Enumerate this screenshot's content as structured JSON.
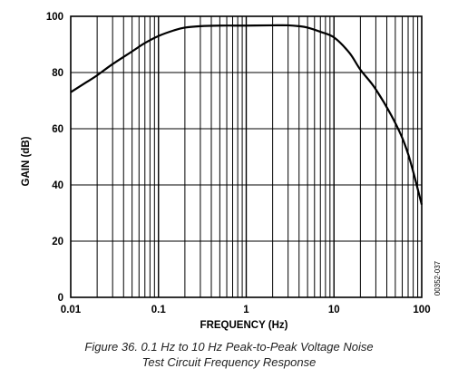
{
  "chart_data": {
    "type": "line",
    "xscale": "log",
    "xlim": [
      0.01,
      100
    ],
    "ylim": [
      0,
      100
    ],
    "xlabel": "FREQUENCY (Hz)",
    "ylabel": "GAIN (dB)",
    "x_ticks": [
      0.01,
      0.1,
      1,
      10,
      100
    ],
    "x_tick_labels": [
      "0.01",
      "0.1",
      "1",
      "10",
      "100"
    ],
    "y_ticks": [
      0,
      20,
      40,
      60,
      80,
      100
    ],
    "y_tick_labels": [
      "0",
      "20",
      "40",
      "60",
      "80",
      "100"
    ],
    "grid": true,
    "series": [
      {
        "x": [
          0.01,
          0.015,
          0.02,
          0.03,
          0.05,
          0.07,
          0.1,
          0.15,
          0.2,
          0.3,
          0.5,
          1,
          2,
          3,
          4,
          5,
          7,
          10,
          15,
          20,
          30,
          50,
          70,
          100
        ],
        "y": [
          73,
          76.5,
          79,
          83,
          87.5,
          90.5,
          93,
          95,
          96,
          96.5,
          96.7,
          96.7,
          96.8,
          96.8,
          96.5,
          96,
          94.5,
          92.5,
          87,
          81,
          74,
          62,
          51,
          33
        ],
        "color": "#000000"
      }
    ],
    "side_label": "00352-037"
  },
  "caption": {
    "line1": "Figure 36. 0.1 Hz to 10 Hz Peak-to-Peak Voltage Noise",
    "line2": "Test Circuit Frequency Response"
  }
}
